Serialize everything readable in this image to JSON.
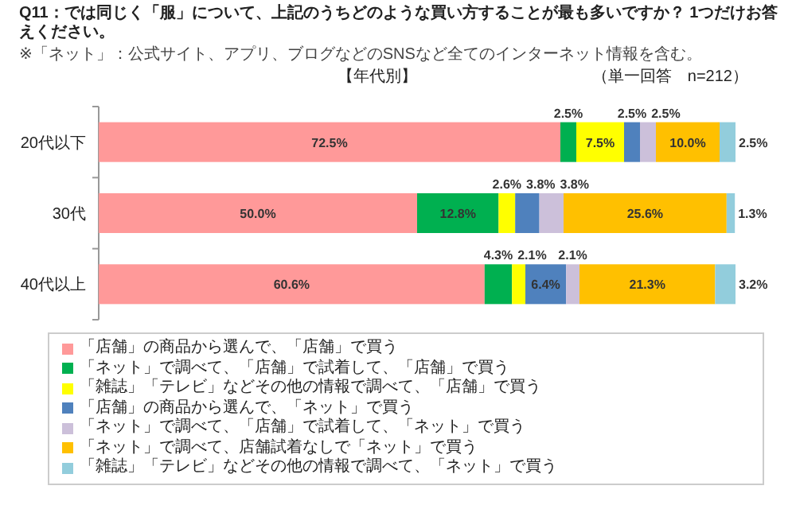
{
  "chart_data": {
    "type": "bar",
    "orientation": "horizontal",
    "stacked": true,
    "legend": "bottom",
    "title": "Q11：では同じく「服」について、上記のうちどのような買い方することが最も多いですか？ 1つだけお答えください。",
    "subtitle": "※「ネット」：公式サイト、アプリ、ブログなどのSNSなど全てのインターネット情報を含む。",
    "annotations": [
      "【年代別】",
      "（単一回答　n=212）"
    ],
    "categories": [
      "20代以下",
      "30代",
      "40代以上"
    ],
    "series": [
      {
        "name": "「店舗」の商品から選んで、「店舗」で買う",
        "color": "#ff9999",
        "values": [
          72.5,
          50.0,
          60.6
        ],
        "value_labels": [
          "72.5%",
          "50.0%",
          "60.6%"
        ]
      },
      {
        "name": "「ネット」で調べて、「店舗」で試着して、「店舗」で買う",
        "color": "#00b050",
        "values": [
          2.5,
          12.8,
          4.3
        ],
        "value_labels": [
          "2.5%",
          "12.8%",
          "4.3%"
        ]
      },
      {
        "name": "「雑誌」「テレビ」などその他の情報で調べて、「店舗」で買う",
        "color": "#ffff00",
        "values": [
          7.5,
          2.6,
          2.1
        ],
        "value_labels": [
          "7.5%",
          "2.6%",
          "2.1%"
        ]
      },
      {
        "name": "「店舗」の商品から選んで、「ネット」で買う",
        "color": "#4f81bd",
        "values": [
          2.5,
          3.8,
          6.4
        ],
        "value_labels": [
          "2.5%",
          "3.8%",
          "6.4%"
        ]
      },
      {
        "name": "「ネット」で調べて、「店舗」で試着して、「ネット」で買う",
        "color": "#ccc0da",
        "values": [
          2.5,
          3.8,
          2.1
        ],
        "value_labels": [
          "2.5%",
          "3.8%",
          "2.1%"
        ]
      },
      {
        "name": "「ネット」で調べて、店舗試着なしで「ネット」で買う",
        "color": "#ffc000",
        "values": [
          10.0,
          25.6,
          21.3
        ],
        "value_labels": [
          "10.0%",
          "25.6%",
          "21.3%"
        ]
      },
      {
        "name": "「雑誌」「テレビ」などその他の情報で調べて、「ネット」で買う",
        "color": "#92cddc",
        "values": [
          2.5,
          1.3,
          3.2
        ],
        "value_labels": [
          "2.5%",
          "1.3%",
          "3.2%"
        ]
      }
    ]
  }
}
